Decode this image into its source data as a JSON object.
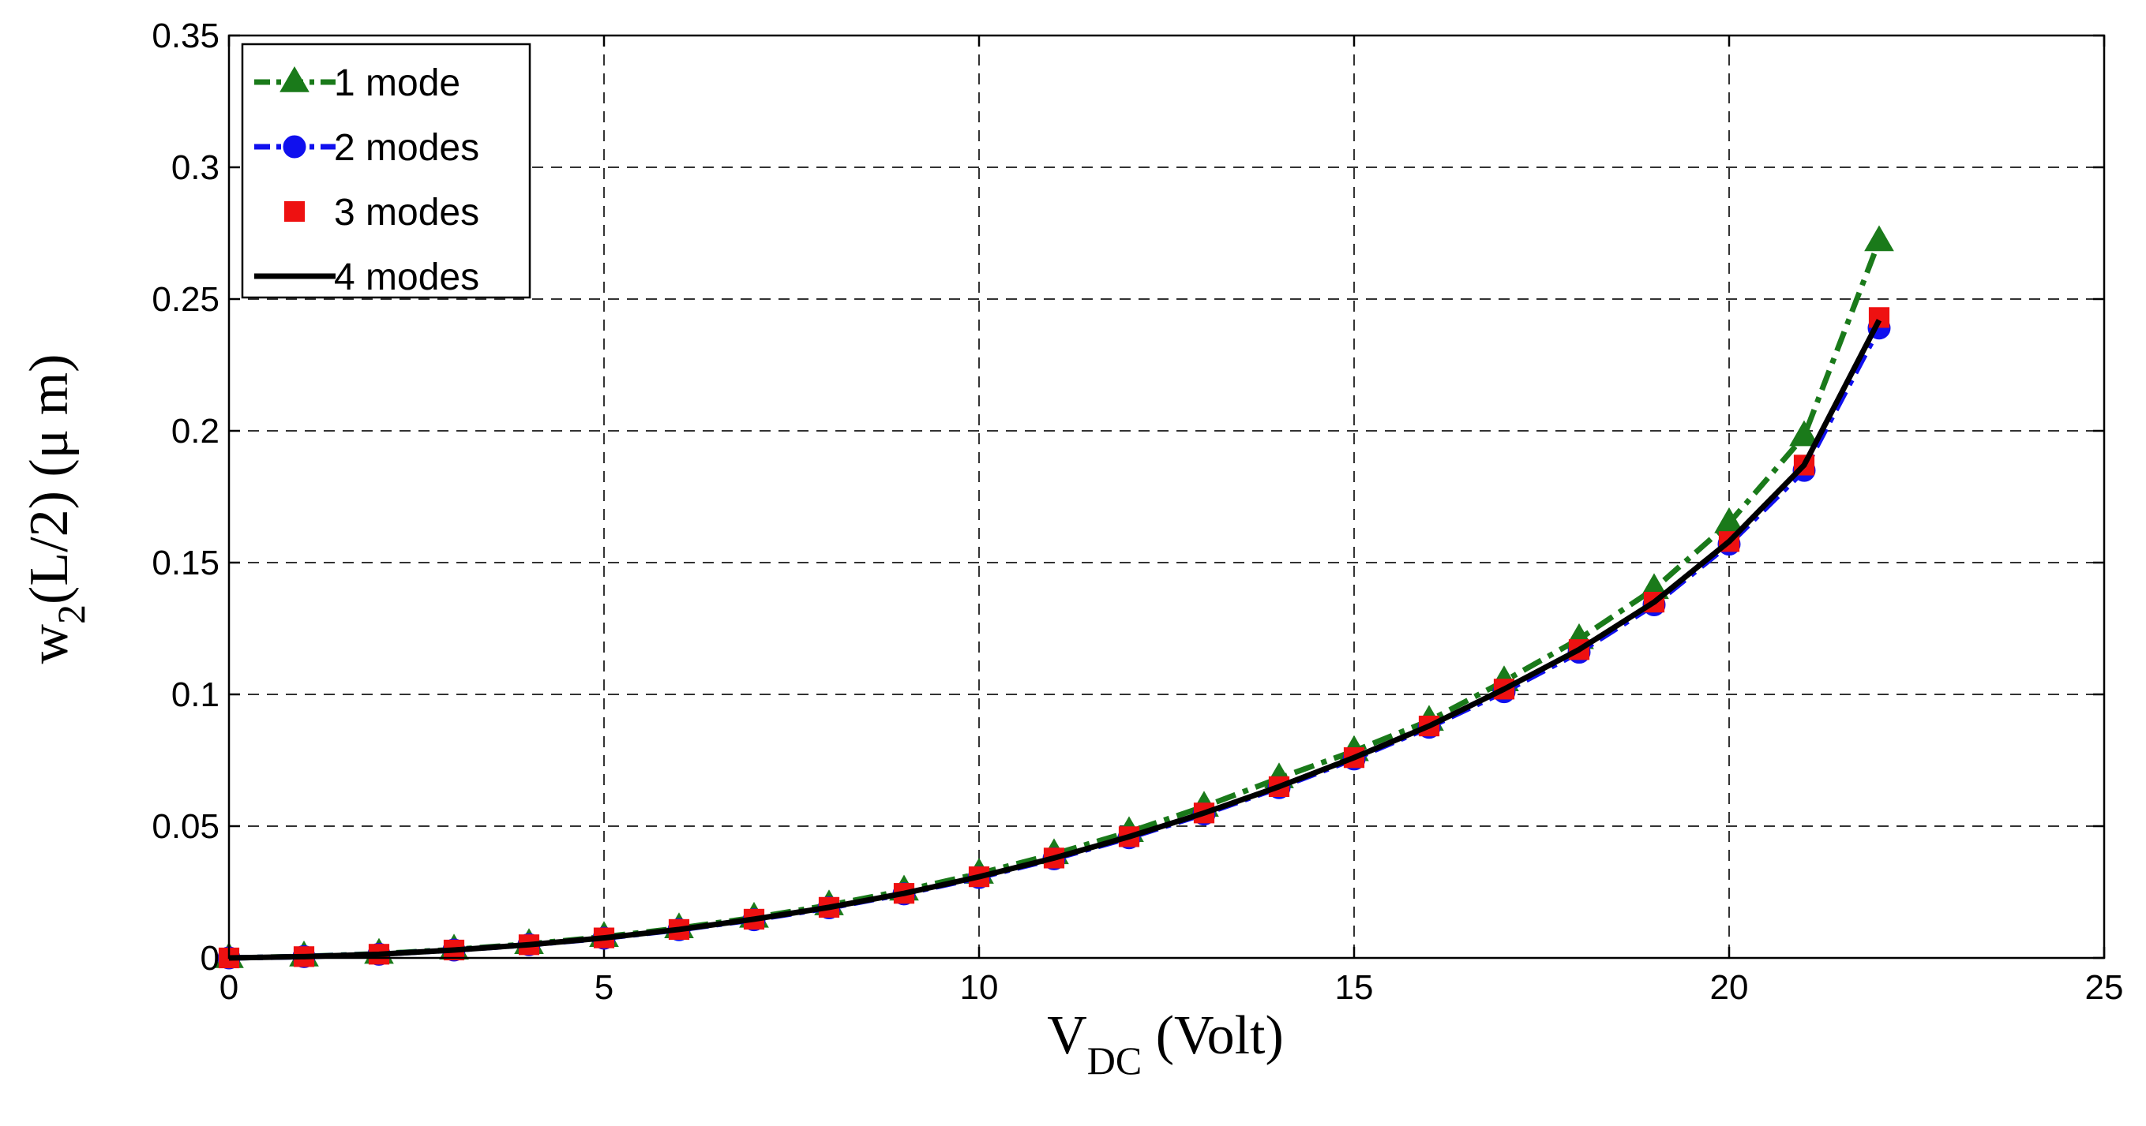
{
  "chart_data": {
    "type": "line",
    "xlabel_main": "V",
    "xlabel_sub": "DC",
    "xlabel_rest": " (Volt)",
    "ylabel_main": "w",
    "ylabel_sub": "2",
    "ylabel_rest": "(L/2) (μ m)",
    "xlim": [
      0,
      25
    ],
    "ylim": [
      0,
      0.35
    ],
    "xticks": [
      0,
      5,
      10,
      15,
      20,
      25
    ],
    "xtick_labels": [
      "0",
      "5",
      "10",
      "15",
      "20",
      "25"
    ],
    "yticks": [
      0,
      0.05,
      0.1,
      0.15,
      0.2,
      0.25,
      0.3,
      0.35
    ],
    "ytick_labels": [
      "0",
      "0.05",
      "0.1",
      "0.15",
      "0.2",
      "0.25",
      "0.3",
      "0.35"
    ],
    "grid": true,
    "legend_position": "top-left",
    "x": [
      0,
      1,
      2,
      3,
      4,
      5,
      6,
      7,
      8,
      9,
      10,
      11,
      12,
      13,
      14,
      15,
      16,
      17,
      18,
      19,
      20,
      21,
      22
    ],
    "series": [
      {
        "name": "1 mode",
        "color": "#1a7a1a",
        "line": "dashdot",
        "marker": "triangle",
        "values": [
          0,
          0.0006,
          0.0016,
          0.0032,
          0.0053,
          0.008,
          0.0113,
          0.0153,
          0.02,
          0.0256,
          0.032,
          0.0394,
          0.0478,
          0.0574,
          0.0682,
          0.0785,
          0.09,
          0.105,
          0.121,
          0.14,
          0.165,
          0.198,
          0.272
        ]
      },
      {
        "name": "2 modes",
        "color": "#1010ee",
        "line": "dashdot",
        "marker": "circle",
        "values": [
          0,
          0.0005,
          0.0014,
          0.003,
          0.005,
          0.0075,
          0.0107,
          0.0145,
          0.019,
          0.0243,
          0.0305,
          0.0376,
          0.0456,
          0.0546,
          0.0646,
          0.0755,
          0.0875,
          0.101,
          0.116,
          0.134,
          0.157,
          0.185,
          0.239
        ]
      },
      {
        "name": "3 modes",
        "color": "#ee1111",
        "line": "none",
        "marker": "square",
        "values": [
          0,
          0.0005,
          0.0014,
          0.003,
          0.005,
          0.0076,
          0.0108,
          0.0147,
          0.0192,
          0.0245,
          0.0308,
          0.0379,
          0.046,
          0.055,
          0.065,
          0.076,
          0.088,
          0.102,
          0.117,
          0.135,
          0.158,
          0.187,
          0.243
        ]
      },
      {
        "name": "4 modes",
        "color": "#000000",
        "line": "solid",
        "marker": "none",
        "values": [
          0,
          0.0005,
          0.0014,
          0.003,
          0.005,
          0.0076,
          0.0108,
          0.0147,
          0.0192,
          0.0245,
          0.0308,
          0.0379,
          0.046,
          0.055,
          0.065,
          0.076,
          0.088,
          0.102,
          0.117,
          0.135,
          0.158,
          0.187,
          0.242
        ]
      }
    ]
  }
}
